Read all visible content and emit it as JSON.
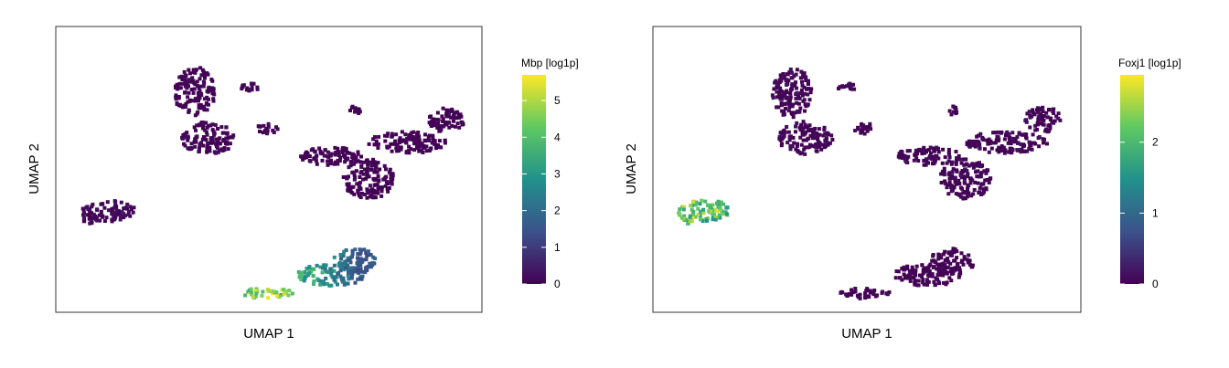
{
  "chart_data": [
    {
      "type": "scatter",
      "subtype": "umap-feature-plot",
      "xlabel": "UMAP 1",
      "ylabel": "UMAP 2",
      "grid": false,
      "colorbar": {
        "title": "Mbp [log1p]",
        "ticks": [
          "0",
          "1",
          "2",
          "3",
          "4",
          "5"
        ],
        "range": [
          0,
          5.7
        ],
        "colormap": [
          "#440154",
          "#3b528b",
          "#21918c",
          "#5ec962",
          "#fde725"
        ]
      },
      "clusters": [
        {
          "name": "top-left",
          "x": 0.3,
          "y": 0.78,
          "min": 0,
          "max": 0.3
        },
        {
          "name": "right-arm",
          "x": 0.65,
          "y": 0.62,
          "min": 0,
          "max": 0.2
        },
        {
          "name": "left-small",
          "x": 0.12,
          "y": 0.4,
          "min": 0,
          "max": 0.6
        },
        {
          "name": "bottom",
          "x": 0.58,
          "y": 0.1,
          "min": 0,
          "max": 5.7
        }
      ]
    },
    {
      "type": "scatter",
      "subtype": "umap-feature-plot",
      "xlabel": "UMAP 1",
      "ylabel": "UMAP 2",
      "grid": false,
      "colorbar": {
        "title": "Foxj1 [log1p]",
        "ticks": [
          "0",
          "1",
          "2"
        ],
        "range": [
          0,
          2.95
        ],
        "colormap": [
          "#440154",
          "#3b528b",
          "#21918c",
          "#5ec962",
          "#fde725"
        ]
      },
      "clusters": [
        {
          "name": "top-left",
          "x": 0.3,
          "y": 0.78,
          "min": 0,
          "max": 0.2
        },
        {
          "name": "right-arm",
          "x": 0.65,
          "y": 0.62,
          "min": 0,
          "max": 0.2
        },
        {
          "name": "left-small",
          "x": 0.12,
          "y": 0.4,
          "min": 0.9,
          "max": 2.95
        },
        {
          "name": "bottom",
          "x": 0.58,
          "y": 0.1,
          "min": 0,
          "max": 0.1
        }
      ]
    }
  ]
}
